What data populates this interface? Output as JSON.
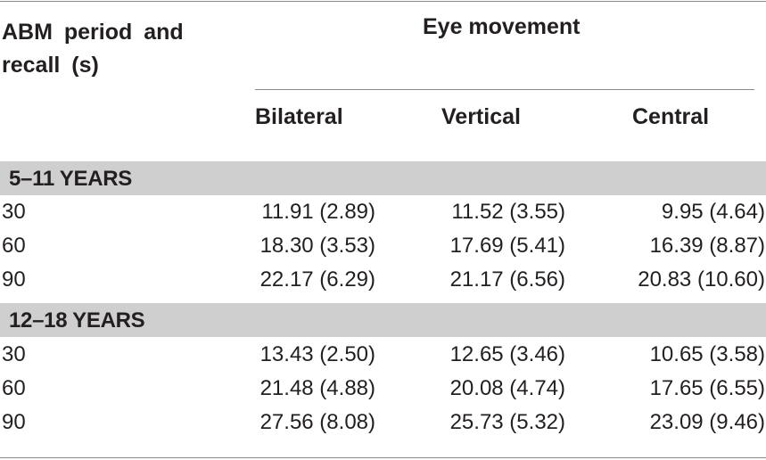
{
  "header": {
    "row_label_line1": "ABM period and",
    "row_label_line2": "recall (s)",
    "group_title": "Eye movement",
    "columns": [
      "Bilateral",
      "Vertical",
      "Central"
    ]
  },
  "groups": [
    {
      "label": "5–11 YEARS",
      "rows": [
        {
          "period": "30",
          "bilateral": "11.91 (2.89)",
          "vertical": "11.52 (3.55)",
          "central": "9.95 (4.64)"
        },
        {
          "period": "60",
          "bilateral": "18.30 (3.53)",
          "vertical": "17.69 (5.41)",
          "central": "16.39 (8.87)"
        },
        {
          "period": "90",
          "bilateral": "22.17 (6.29)",
          "vertical": "21.17 (6.56)",
          "central": "20.83 (10.60)"
        }
      ]
    },
    {
      "label": "12–18 YEARS",
      "rows": [
        {
          "period": "30",
          "bilateral": "13.43 (2.50)",
          "vertical": "12.65 (3.46)",
          "central": "10.65 (3.58)"
        },
        {
          "period": "60",
          "bilateral": "21.48 (4.88)",
          "vertical": "20.08 (4.74)",
          "central": "17.65 (6.55)"
        },
        {
          "period": "90",
          "bilateral": "27.56 (8.08)",
          "vertical": "25.73 (5.32)",
          "central": "23.09 (9.46)"
        }
      ]
    }
  ]
}
